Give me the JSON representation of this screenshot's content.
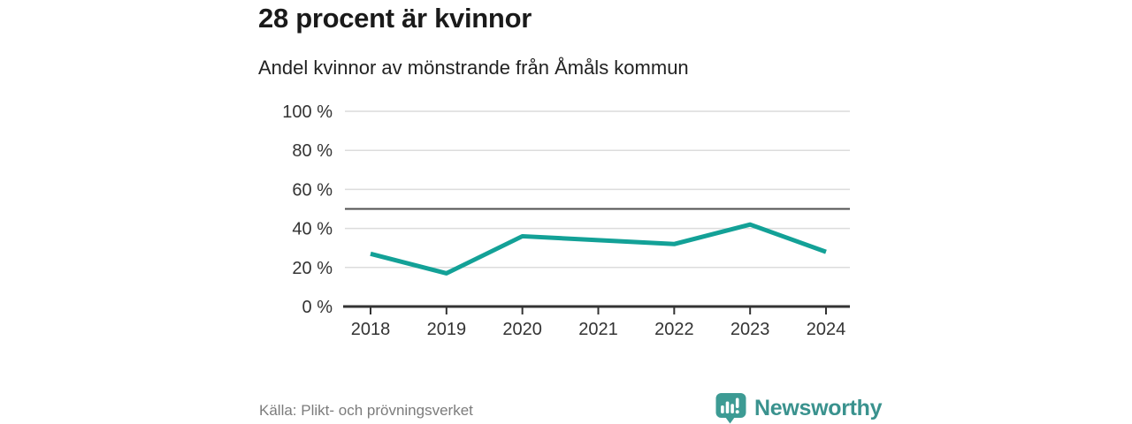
{
  "header": {
    "title": "28 procent är kvinnor",
    "subtitle": "Andel kvinnor av mönstrande från Åmåls kommun"
  },
  "chart_data": {
    "type": "line",
    "title": "28 procent är kvinnor",
    "subtitle": "Andel kvinnor av mönstrande från Åmåls kommun",
    "x": [
      "2018",
      "2019",
      "2020",
      "2021",
      "2022",
      "2023",
      "2024"
    ],
    "values": [
      27,
      17,
      36,
      34,
      32,
      42,
      28
    ],
    "unit": "%",
    "ylim": [
      0,
      100
    ],
    "yticks": [
      0,
      20,
      40,
      60,
      80,
      100
    ],
    "ytick_labels": [
      "0 %",
      "20 %",
      "40 %",
      "60 %",
      "80 %",
      "100 %"
    ],
    "reference_line": 50,
    "grid": true,
    "legend": "none",
    "line_color": "#13a197"
  },
  "footer": {
    "source": "Källa: Plikt- och prövningsverket"
  },
  "brand": {
    "name": "Newsworthy",
    "text_color": "#3a928e",
    "icon_color": "#3d9b94"
  },
  "colors": {
    "background": "#ffffff",
    "title_text": "#1a1a1a",
    "subtitle_text": "#222222",
    "axis_text": "#333333",
    "gridline": "#dcdcdc",
    "reference_line": "#4f4f4f",
    "axis_line": "#333333",
    "source_text": "#7c7c7c"
  }
}
